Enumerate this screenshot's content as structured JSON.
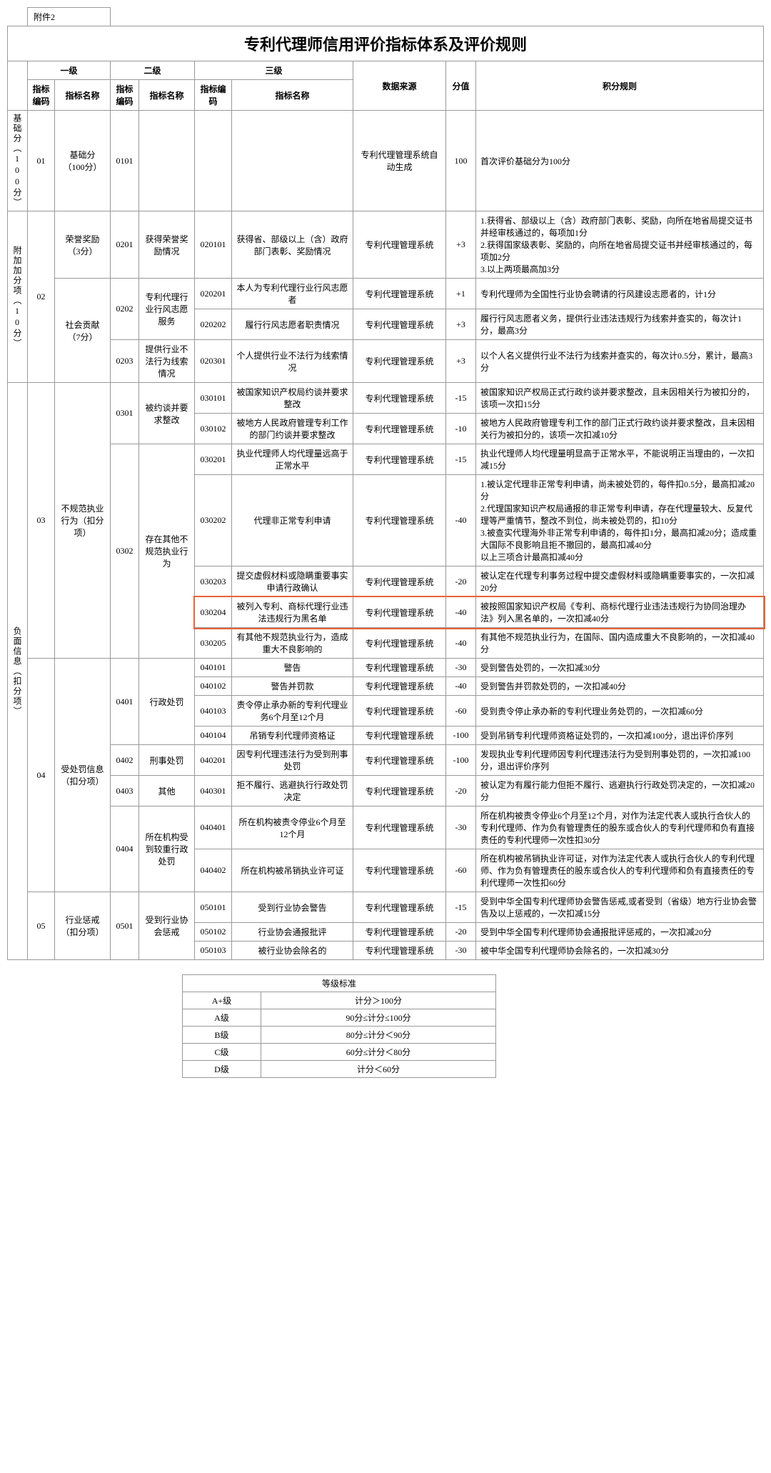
{
  "attachment_label": "附件2",
  "title": "专利代理师信用评价指标体系及评价规则",
  "header": {
    "level1": "一级",
    "level2": "二级",
    "level3": "三级",
    "code": "指标编码",
    "name": "指标名称",
    "code3": "指标编码",
    "name3": "指标名称",
    "datasrc": "数据来源",
    "score": "分值",
    "rule": "积分规则"
  },
  "sections": {
    "base": {
      "vert": "基础分（100分）",
      "l1_code": "01",
      "l1_name": "基础分（100分）",
      "l2_code": "0101",
      "src": "专利代理管理系统自动生成",
      "score": "100",
      "rule": "首次评价基础分为100分"
    },
    "add": {
      "vert": "附加加分项（10分）",
      "l1_code": "02",
      "r1": {
        "l1_name": "荣誉奖励（3分）",
        "l2_code": "0201",
        "l2_name": "获得荣誉奖励情况",
        "l3_code": "020101",
        "l3_name": "获得省、部级以上（含）政府部门表彰、奖励情况",
        "src": "专利代理管理系统",
        "score": "+3",
        "rule": "1.获得省、部级以上（含）政府部门表彰、奖励，向所在地省局提交证书并经审核通过的，每项加1分\n2.获得国家级表彰、奖励的，向所在地省局提交证书并经审核通过的，每项加2分\n3.以上两项最高加3分"
      },
      "r2": {
        "l1_name": "社会贡献（7分）",
        "l2_code": "0202",
        "l2_name": "专利代理行业行风志愿服务",
        "l3_code": "020201",
        "l3_name": "本人为专利代理行业行风志愿者",
        "src": "专利代理管理系统",
        "score": "+1",
        "rule": "专利代理师为全国性行业协会聘请的行风建设志愿者的，计1分"
      },
      "r3": {
        "l3_code": "020202",
        "l3_name": "履行行风志愿者职责情况",
        "src": "专利代理管理系统",
        "score": "+3",
        "rule": "履行行风志愿者义务，提供行业违法违规行为线索并查实的，每次计1分，最高3分"
      },
      "r4": {
        "l2_code": "0203",
        "l2_name": "提供行业不法行为线索情况",
        "l3_code": "020301",
        "l3_name": "个人提供行业不法行为线索情况",
        "src": "专利代理管理系统",
        "score": "+3",
        "rule": "以个人名义提供行业不法行为线索并查实的，每次计0.5分，累计，最高3分"
      }
    },
    "neg": {
      "vert": "负面信息（扣分项）",
      "g03": {
        "l1_code": "03",
        "l1_name": "不规范执业行为（扣分项）",
        "l2a_code": "0301",
        "l2a_name": "被约谈并要求整改",
        "r1": {
          "l3_code": "030101",
          "l3_name": "被国家知识产权局约谈并要求整改",
          "src": "专利代理管理系统",
          "score": "-15",
          "rule": "被国家知识产权局正式行政约谈并要求整改，且未因相关行为被扣分的，该项一次扣15分"
        },
        "r2": {
          "l3_code": "030102",
          "l3_name": "被地方人民政府管理专利工作的部门约谈并要求整改",
          "src": "专利代理管理系统",
          "score": "-10",
          "rule": "被地方人民政府管理专利工作的部门正式行政约谈并要求整改，且未因相关行为被扣分的，该项一次扣减10分"
        },
        "l2b_code": "0302",
        "l2b_name": "存在其他不规范执业行为",
        "r3": {
          "l3_code": "030201",
          "l3_name": "执业代理师人均代理量远高于正常水平",
          "src": "专利代理管理系统",
          "score": "-15",
          "rule": "执业代理师人均代理量明显高于正常水平，不能说明正当理由的，一次扣减15分"
        },
        "r4": {
          "l3_code": "030202",
          "l3_name": "代理非正常专利申请",
          "src": "专利代理管理系统",
          "score": "-40",
          "rule": "1.被认定代理非正常专利申请，尚未被处罚的，每件扣0.5分，最高扣减20分\n2.代理国家知识产权局通报的非正常专利申请，存在代理量较大、反复代理等严重情节，整改不到位，尚未被处罚的，扣10分\n3.被查实代理海外非正常专利申请的，每件扣1分，最高扣减20分；造成重大国际不良影响且拒不撤回的，最高扣减40分\n以上三项合计最高扣减40分"
        },
        "r5": {
          "l3_code": "030203",
          "l3_name": "提交虚假材料或隐瞒重要事实申请行政确认",
          "src": "专利代理管理系统",
          "score": "-20",
          "rule": "被认定在代理专利事务过程中提交虚假材料或隐瞒重要事实的，一次扣减20分"
        },
        "r6": {
          "l3_code": "030204",
          "l3_name": "被列入专利、商标代理行业违法违规行为黑名单",
          "src": "专利代理管理系统",
          "score": "-40",
          "rule": "被按照国家知识产权局《专利、商标代理行业违法违规行为协同治理办法》列入黑名单的，一次扣减40分"
        },
        "r7": {
          "l3_code": "030205",
          "l3_name": "有其他不规范执业行为，造成重大不良影响的",
          "src": "专利代理管理系统",
          "score": "-40",
          "rule": "有其他不规范执业行为，在国际、国内造成重大不良影响的，一次扣减40分"
        }
      },
      "g04": {
        "l1_code": "04",
        "l1_name": "受处罚信息（扣分项）",
        "l2a_code": "0401",
        "l2a_name": "行政处罚",
        "r1": {
          "l3_code": "040101",
          "l3_name": "警告",
          "src": "专利代理管理系统",
          "score": "-30",
          "rule": "受到警告处罚的，一次扣减30分"
        },
        "r2": {
          "l3_code": "040102",
          "l3_name": "警告并罚款",
          "src": "专利代理管理系统",
          "score": "-40",
          "rule": "受到警告并罚款处罚的，一次扣减40分"
        },
        "r3": {
          "l3_code": "040103",
          "l3_name": "责令停止承办新的专利代理业务6个月至12个月",
          "src": "专利代理管理系统",
          "score": "-60",
          "rule": "受到责令停止承办新的专利代理业务处罚的，一次扣减60分"
        },
        "r4": {
          "l3_code": "040104",
          "l3_name": "吊销专利代理师资格证",
          "src": "专利代理管理系统",
          "score": "-100",
          "rule": "受到吊销专利代理师资格证处罚的，一次扣减100分，退出评价序列"
        },
        "l2b_code": "0402",
        "l2b_name": "刑事处罚",
        "r5": {
          "l3_code": "040201",
          "l3_name": "因专利代理违法行为受到刑事处罚",
          "src": "专利代理管理系统",
          "score": "-100",
          "rule": "发现执业专利代理师因专利代理违法行为受到刑事处罚的，一次扣减100分，退出评价序列"
        },
        "l2c_code": "0403",
        "l2c_name": "其他",
        "r6": {
          "l3_code": "040301",
          "l3_name": "拒不履行、逃避执行行政处罚决定",
          "src": "专利代理管理系统",
          "score": "-20",
          "rule": "被认定为有履行能力但拒不履行、逃避执行行政处罚决定的，一次扣减20分"
        },
        "l2d_code": "0404",
        "l2d_name": "所在机构受到较重行政处罚",
        "r7": {
          "l3_code": "040401",
          "l3_name": "所在机构被责令停业6个月至12个月",
          "src": "专利代理管理系统",
          "score": "-30",
          "rule": "所在机构被责令停业6个月至12个月，对作为法定代表人或执行合伙人的专利代理师、作为负有管理责任的股东或合伙人的专利代理师和负有直接责任的专利代理师一次性扣30分"
        },
        "r8": {
          "l3_code": "040402",
          "l3_name": "所在机构被吊销执业许可证",
          "src": "专利代理管理系统",
          "score": "-60",
          "rule": "所在机构被吊销执业许可证，对作为法定代表人或执行合伙人的专利代理师、作为负有管理责任的股东或合伙人的专利代理师和负有直接责任的专利代理师一次性扣60分"
        }
      },
      "g05": {
        "l1_code": "05",
        "l1_name": "行业惩戒（扣分项）",
        "l2_code": "0501",
        "l2_name": "受到行业协会惩戒",
        "r1": {
          "l3_code": "050101",
          "l3_name": "受到行业协会警告",
          "src": "专利代理管理系统",
          "score": "-15",
          "rule": "受到中华全国专利代理师协会警告惩戒,或者受到（省级）地方行业协会警告及以上惩戒的，一次扣减15分"
        },
        "r2": {
          "l3_code": "050102",
          "l3_name": "行业协会通报批评",
          "src": "专利代理管理系统",
          "score": "-20",
          "rule": "受到中华全国专利代理师协会通报批评惩戒的，一次扣减20分"
        },
        "r3": {
          "l3_code": "050103",
          "l3_name": "被行业协会除名的",
          "src": "专利代理管理系统",
          "score": "-30",
          "rule": "被中华全国专利代理师协会除名的，一次扣减30分"
        }
      }
    }
  },
  "grade": {
    "title": "等级标准",
    "rows": [
      {
        "g": "A+级",
        "r": "计分＞100分"
      },
      {
        "g": "A级",
        "r": "90分≤计分≤100分"
      },
      {
        "g": "B级",
        "r": "80分≤计分＜90分"
      },
      {
        "g": "C级",
        "r": "60分≤计分＜80分"
      },
      {
        "g": "D级",
        "r": "计分＜60分"
      }
    ]
  },
  "highlight": {
    "color": "#e8633a"
  }
}
